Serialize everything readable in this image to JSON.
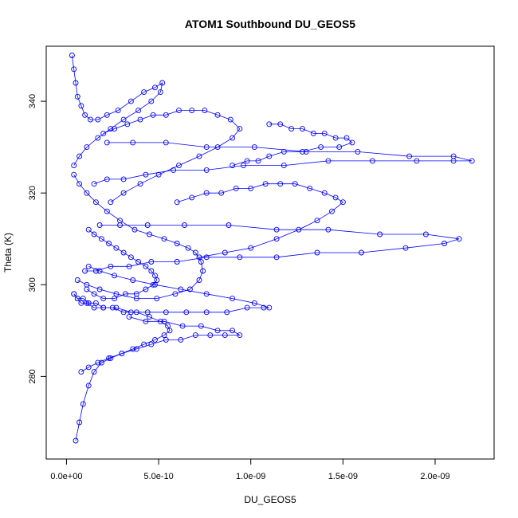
{
  "chart_data": {
    "type": "scatter",
    "title": "ATOM1 Southbound DU_GEOS5",
    "xlabel": "DU_GEOS5",
    "ylabel": "Theta (K)",
    "xlim": [
      -1.1e-10,
      2.32e-09
    ],
    "ylim": [
      262,
      352
    ],
    "xticks": [
      {
        "value": 0,
        "label": "0.0e+00"
      },
      {
        "value": 5e-10,
        "label": "5.0e-10"
      },
      {
        "value": 1e-09,
        "label": "1.0e-09"
      },
      {
        "value": 1.5e-09,
        "label": "1.5e-09"
      },
      {
        "value": 2e-09,
        "label": "2.0e-09"
      }
    ],
    "yticks": [
      {
        "value": 280,
        "label": "280"
      },
      {
        "value": 300,
        "label": "300"
      },
      {
        "value": 320,
        "label": "320"
      },
      {
        "value": 340,
        "label": "340"
      }
    ],
    "marker": "open-circle",
    "color": "#0000ff",
    "connected": true,
    "grid": false,
    "legend": "none",
    "series": [
      {
        "x": [
          5e-11,
          7e-11,
          9e-11,
          1.2e-10,
          1.5e-10,
          1.9e-10,
          2.4e-10,
          3e-10,
          3.6e-10,
          4.2e-10,
          4.8e-10,
          5.3e-10,
          5.6e-10,
          5.5e-10,
          5.1e-10,
          4.5e-10,
          3.8e-10,
          3.1e-10,
          2.5e-10,
          2e-10,
          1.6e-10,
          1.2e-10,
          9e-11,
          6e-11,
          4e-11
        ],
        "y": [
          266,
          270,
          274,
          278,
          281,
          283,
          284,
          285,
          286,
          287,
          288,
          289,
          290,
          291,
          292,
          293,
          294,
          294,
          295,
          295,
          296,
          296,
          297,
          297,
          298
        ]
      },
      {
        "x": [
          4e-11,
          6e-11,
          8e-11,
          1.1e-10,
          1.5e-10,
          2e-10,
          2.7e-10,
          3.5e-10,
          4.4e-10,
          5.4e-10,
          6.5e-10,
          7.6e-10,
          8.7e-10,
          9.8e-10,
          1.07e-09,
          1.1e-09,
          1.02e-09,
          9e-10,
          7.6e-10,
          6.2e-10,
          4.8e-10,
          3.6e-10,
          2.6e-10,
          1.8e-10,
          1.2e-10
        ],
        "y": [
          298,
          297,
          296,
          296,
          295,
          295,
          295,
          294,
          294,
          294,
          294,
          294,
          294,
          295,
          295,
          295,
          296,
          297,
          298,
          299,
          300,
          301,
          302,
          303,
          304
        ]
      },
      {
        "x": [
          1e-10,
          1.6e-10,
          2.4e-10,
          3.4e-10,
          4.6e-10,
          6e-10,
          7.6e-10,
          9.4e-10,
          1.14e-09,
          1.36e-09,
          1.6e-09,
          1.84e-09,
          2.05e-09,
          2.13e-09,
          1.95e-09,
          1.7e-09,
          1.42e-09,
          1.14e-09,
          8.8e-10,
          6.4e-10,
          4.4e-10,
          2.9e-10,
          1.8e-10
        ],
        "y": [
          303,
          303,
          304,
          304,
          305,
          305,
          306,
          306,
          306,
          307,
          307,
          308,
          309,
          310,
          311,
          311,
          312,
          312,
          313,
          313,
          313,
          313,
          313
        ]
      },
      {
        "x": [
          1.5e-10,
          2.2e-10,
          3.1e-10,
          4.3e-10,
          5.8e-10,
          7.6e-10,
          9.6e-10,
          1.18e-09,
          1.42e-09,
          1.66e-09,
          1.9e-09,
          2.1e-09,
          2.2e-09,
          2.1e-09,
          1.86e-09,
          1.58e-09,
          1.3e-09,
          1.02e-09,
          7.6e-10,
          5.4e-10,
          3.6e-10,
          2.2e-10
        ],
        "y": [
          322,
          323,
          323,
          324,
          325,
          325,
          326,
          326,
          327,
          327,
          327,
          327,
          327,
          328,
          328,
          329,
          329,
          330,
          330,
          331,
          331,
          331
        ]
      },
      {
        "x": [
          1.1e-09,
          1.16e-09,
          1.22e-09,
          1.28e-09,
          1.34e-09,
          1.4e-09,
          1.46e-09,
          1.52e-09,
          1.55e-09,
          1.48e-09,
          1.38e-09,
          1.28e-09,
          1.18e-09,
          1.1e-09,
          1.04e-09,
          9.8e-10,
          9e-10
        ],
        "y": [
          335,
          335,
          334,
          334,
          333,
          333,
          332,
          332,
          331,
          330,
          330,
          329,
          329,
          328,
          327,
          327,
          326
        ]
      },
      {
        "x": [
          3e-11,
          4e-11,
          5e-11,
          6e-11,
          8e-11,
          1e-10,
          1.3e-10,
          1.7e-10,
          2.2e-10,
          2.8e-10,
          3.5e-10,
          4.2e-10,
          4.8e-10,
          5.2e-10,
          5.1e-10,
          4.6e-10,
          3.9e-10,
          3.1e-10,
          2.4e-10,
          1.7e-10,
          1.1e-10,
          7e-11,
          4e-11
        ],
        "y": [
          350,
          347,
          344,
          341,
          339,
          337,
          336,
          336,
          337,
          338,
          340,
          342,
          343,
          344,
          342,
          340,
          338,
          336,
          334,
          332,
          330,
          328,
          326
        ]
      },
      {
        "x": [
          4e-11,
          7e-11,
          1.1e-10,
          1.6e-10,
          2.2e-10,
          2.9e-10,
          3.7e-10,
          4.5e-10,
          5.3e-10,
          6e-10,
          6.6e-10,
          7e-10,
          7.3e-10,
          7.4e-10,
          7.2e-10,
          6.7e-10,
          5.9e-10,
          4.9e-10,
          3.8e-10,
          2.7e-10,
          1.8e-10,
          1.1e-10,
          6e-11
        ],
        "y": [
          324,
          322,
          320,
          318,
          316,
          314,
          312,
          311,
          310,
          309,
          308,
          307,
          305,
          303,
          301,
          299,
          298,
          297,
          297,
          298,
          299,
          300,
          301
        ]
      },
      {
        "x": [
          6e-10,
          6.8e-10,
          7.6e-10,
          8.4e-10,
          9.2e-10,
          1e-09,
          1.08e-09,
          1.16e-09,
          1.24e-09,
          1.32e-09,
          1.4e-09,
          1.46e-09,
          1.5e-09,
          1.44e-09,
          1.36e-09,
          1.26e-09,
          1.14e-09,
          1e-09,
          8.6e-10,
          7.2e-10
        ],
        "y": [
          318,
          319,
          320,
          320,
          321,
          321,
          322,
          322,
          322,
          321,
          320,
          319,
          318,
          316,
          314,
          312,
          310,
          308,
          307,
          306
        ]
      },
      {
        "x": [
          8e-11,
          1.2e-10,
          1.7e-10,
          2.3e-10,
          3e-10,
          3.8e-10,
          4.6e-10,
          5.4e-10,
          6.2e-10,
          7e-10,
          7.8e-10,
          8.6e-10,
          9.4e-10,
          9e-10,
          8.2e-10,
          7.3e-10,
          6.3e-10,
          5.3e-10,
          4.3e-10,
          3.4e-10
        ],
        "y": [
          281,
          282,
          283,
          284,
          285,
          286,
          287,
          288,
          288,
          289,
          289,
          289,
          289,
          290,
          290,
          291,
          291,
          292,
          292,
          293
        ]
      },
      {
        "x": [
          2e-10,
          2.6e-10,
          3.3e-10,
          4e-10,
          4.7e-10,
          5.4e-10,
          6.1e-10,
          6.8e-10,
          7.5e-10,
          8.2e-10,
          8.9e-10,
          9.4e-10,
          9e-10,
          8.2e-10,
          7.2e-10,
          6.1e-10,
          5e-10,
          4e-10,
          3.1e-10,
          2.4e-10
        ],
        "y": [
          333,
          334,
          335,
          336,
          337,
          337,
          338,
          338,
          338,
          337,
          336,
          334,
          332,
          330,
          328,
          326,
          324,
          322,
          320,
          318
        ]
      },
      {
        "x": [
          1.2e-10,
          1.5e-10,
          1.9e-10,
          2.3e-10,
          2.7e-10,
          3.1e-10,
          3.5e-10,
          3.9e-10,
          4.3e-10,
          4.6e-10,
          4.8e-10,
          4.9e-10,
          4.7e-10,
          4.3e-10,
          3.8e-10,
          3.2e-10,
          2.6e-10,
          2e-10,
          1.5e-10,
          1.1e-10
        ],
        "y": [
          312,
          311,
          310,
          309,
          308,
          307,
          306,
          305,
          304,
          303,
          302,
          301,
          300,
          299,
          298,
          298,
          297,
          297,
          298,
          299
        ]
      }
    ]
  }
}
